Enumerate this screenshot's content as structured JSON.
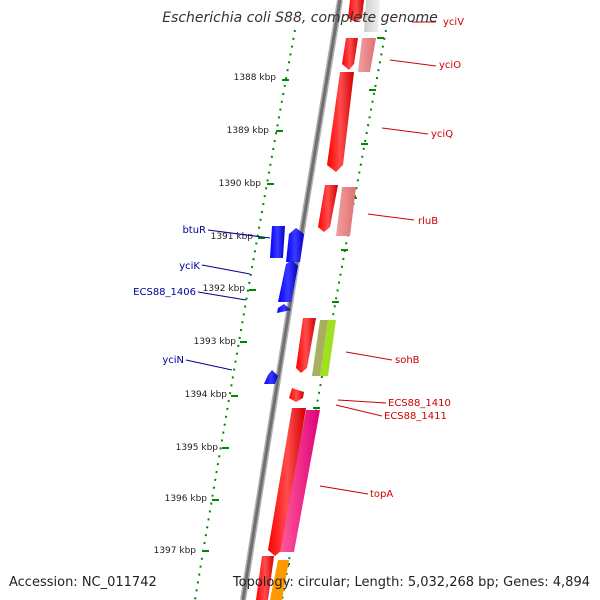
{
  "title": "Escherichia coli S88, complete genome",
  "accession": "Accession: NC_011742",
  "summary": "Topology: circular; Length: 5,032,268 bp; Genes: 4,894",
  "ticks": [
    "1388 kbp",
    "1389 kbp",
    "1390 kbp",
    "1391 kbp",
    "1392 kbp",
    "1393 kbp",
    "1394 kbp",
    "1395 kbp",
    "1396 kbp",
    "1397 kbp"
  ],
  "genes_forward": [
    "yciV",
    "yciO",
    "yciQ",
    "rluB",
    "sohB",
    "ECS88_1410",
    "ECS88_1411",
    "topA"
  ],
  "genes_reverse": [
    "btuR",
    "yciK",
    "ECS88_1406",
    "yciN"
  ],
  "colors": {
    "forward_cds": "#ff0000",
    "reverse_cds": "#0000ff",
    "backbone": "#888888",
    "tick": "#008800",
    "forward_label": "#cc0000",
    "reverse_label": "#000099"
  }
}
